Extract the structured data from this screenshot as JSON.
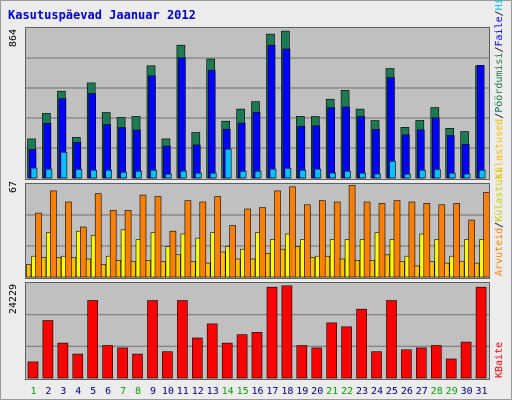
{
  "title": "Kasutuspäevad Jaanuar 2012",
  "legend": {
    "top": [
      {
        "text": "Külastused",
        "color": "#ffbf00"
      },
      {
        "text": "Pöördumisi",
        "color": "#1e7a52"
      },
      {
        "text": "Faile",
        "color": "#0000ff"
      },
      {
        "text": "Hitid",
        "color": "#00c0ff"
      }
    ],
    "mid": [
      {
        "text": "Arvuteid",
        "color": "#ff8000"
      },
      {
        "text": "Külastusi",
        "color": "#ffff00"
      }
    ],
    "bot": [
      {
        "text": "KBaite",
        "color": "#ff0000"
      }
    ],
    "separator": "/"
  },
  "colors": {
    "hits": "#1e7a52",
    "files": "#0000ff",
    "pages": "#00c0ff",
    "sites": "#ff8000",
    "visits": "#ffff00",
    "kbytes": "#ff0000",
    "weekday_label": "#000080",
    "weekend_label": "#00a000"
  },
  "chart_data": [
    {
      "type": "bar",
      "ymax_label": "864",
      "ylim": [
        0,
        864
      ],
      "categories": [
        "1",
        "2",
        "3",
        "4",
        "5",
        "6",
        "7",
        "8",
        "9",
        "10",
        "11",
        "12",
        "13",
        "14",
        "15",
        "16",
        "17",
        "18",
        "19",
        "20",
        "21",
        "22",
        "23",
        "24",
        "25",
        "26",
        "27",
        "28",
        "29",
        "30",
        "31"
      ],
      "weekend": [
        "1",
        "7",
        "8",
        "14",
        "15",
        "21",
        "22",
        "28",
        "29"
      ],
      "series": [
        {
          "name": "Pöördumisi",
          "key": "hits",
          "values": [
            225,
            372,
            500,
            234,
            548,
            377,
            349,
            354,
            646,
            225,
            765,
            262,
            685,
            327,
            397,
            440,
            829,
            846,
            355,
            354,
            454,
            505,
            397,
            331,
            631,
            292,
            332,
            406,
            286,
            268,
            646
          ]
        },
        {
          "name": "Faile",
          "key": "files",
          "values": [
            164,
            315,
            457,
            205,
            487,
            308,
            291,
            276,
            588,
            184,
            692,
            190,
            621,
            281,
            316,
            379,
            765,
            743,
            297,
            300,
            405,
            409,
            355,
            280,
            578,
            249,
            277,
            347,
            246,
            194,
            649
          ]
        },
        {
          "name": "Hitid",
          "key": "pages",
          "values": [
            57,
            51,
            148,
            50,
            45,
            45,
            33,
            39,
            45,
            22,
            40,
            28,
            28,
            166,
            39,
            39,
            51,
            56,
            45,
            51,
            29,
            39,
            28,
            23,
            96,
            22,
            45,
            50,
            28,
            23,
            45
          ]
        }
      ]
    },
    {
      "type": "bar",
      "ymax_label": "67",
      "ylim": [
        0,
        67
      ],
      "series": [
        {
          "name": "Arvuteid",
          "key": "sites",
          "values": [
            46,
            62,
            54,
            36,
            60,
            48,
            48,
            59,
            58,
            33,
            55,
            54,
            58,
            37,
            49,
            50,
            62,
            65,
            52,
            55,
            54,
            66,
            54,
            53,
            55,
            54,
            53,
            52,
            53,
            41,
            61
          ]
        },
        {
          "name": "Külastusi",
          "key": "visits",
          "values": [
            15,
            32,
            15,
            33,
            30,
            15,
            34,
            27,
            32,
            22,
            31,
            28,
            32,
            22,
            20,
            32,
            27,
            31,
            27,
            15,
            27,
            27,
            27,
            32,
            27,
            15,
            31,
            27,
            15,
            27,
            27
          ]
        },
        {
          "name": "Külastused",
          "key": "visits_light",
          "values": [
            9,
            14,
            14,
            14,
            13,
            9,
            12,
            11,
            12,
            11,
            16,
            11,
            10,
            18,
            13,
            13,
            17,
            20,
            22,
            14,
            15,
            13,
            12,
            12,
            16,
            11,
            8,
            11,
            10,
            11,
            10
          ]
        }
      ]
    },
    {
      "type": "bar",
      "ymax_label": "24229",
      "ylim": [
        0,
        24229
      ],
      "series": [
        {
          "name": "KBaite",
          "key": "kbytes",
          "values": [
            4110,
            14660,
            8906,
            6085,
            19768,
            8294,
            7681,
            6085,
            19768,
            6698,
            19768,
            10194,
            13804,
            8906,
            11054,
            11666,
            23148,
            23516,
            8294,
            7681,
            14048,
            13068,
            17558,
            6698,
            19768,
            7191,
            7681,
            8294,
            4845,
            9154,
            23148
          ]
        }
      ]
    }
  ]
}
